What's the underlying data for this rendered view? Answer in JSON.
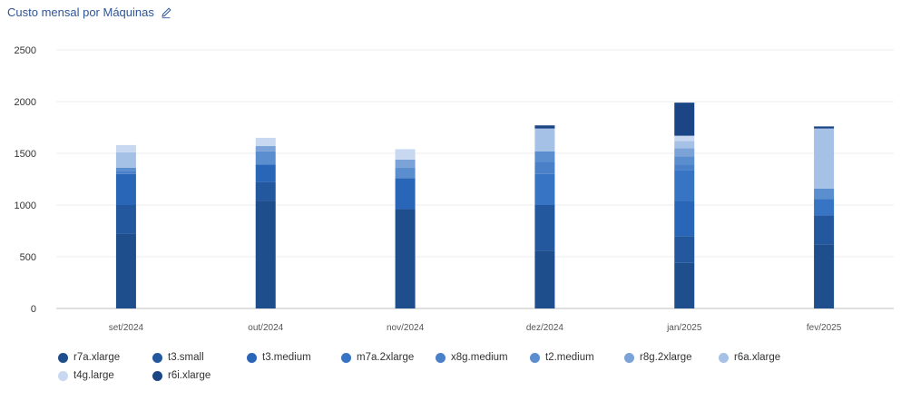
{
  "header": {
    "title": "Custo mensal por Máquinas",
    "edit_icon": "pencil-icon"
  },
  "chart_data": {
    "type": "bar",
    "stacked": true,
    "title": "Custo mensal por Máquinas",
    "xlabel": "",
    "ylabel": "",
    "ylim": [
      0,
      2500
    ],
    "yticks": [
      0,
      500,
      1000,
      1500,
      2000,
      2500
    ],
    "grid": true,
    "legend_position": "bottom",
    "categories": [
      "set/2024",
      "out/2024",
      "nov/2024",
      "dez/2024",
      "jan/2025",
      "fev/2025"
    ],
    "series": [
      {
        "name": "r7a.xlarge",
        "color": "#1f4e8c",
        "values": [
          720,
          1040,
          960,
          560,
          440,
          620
        ]
      },
      {
        "name": "t3.small",
        "color": "#24589e",
        "values": [
          280,
          180,
          0,
          440,
          260,
          280
        ]
      },
      {
        "name": "t3.medium",
        "color": "#2a66b8",
        "values": [
          300,
          170,
          300,
          0,
          340,
          0
        ]
      },
      {
        "name": "m7a.2xlarge",
        "color": "#3874c4",
        "values": [
          0,
          0,
          0,
          300,
          300,
          160
        ]
      },
      {
        "name": "x8g.medium",
        "color": "#4a80c8",
        "values": [
          30,
          0,
          0,
          120,
          50,
          0
        ]
      },
      {
        "name": "t2.medium",
        "color": "#5b8ece",
        "values": [
          30,
          130,
          100,
          100,
          80,
          100
        ]
      },
      {
        "name": "r8g.2xlarge",
        "color": "#7ba3d8",
        "values": [
          0,
          50,
          80,
          0,
          80,
          0
        ]
      },
      {
        "name": "r6a.xlarge",
        "color": "#a6c1e6",
        "values": [
          150,
          0,
          0,
          220,
          70,
          580
        ]
      },
      {
        "name": "t4g.large",
        "color": "#c8d8f0",
        "values": [
          70,
          80,
          100,
          0,
          50,
          0
        ]
      },
      {
        "name": "r6i.xlarge",
        "color": "#1c4585",
        "values": [
          0,
          0,
          0,
          30,
          320,
          20
        ]
      }
    ]
  }
}
